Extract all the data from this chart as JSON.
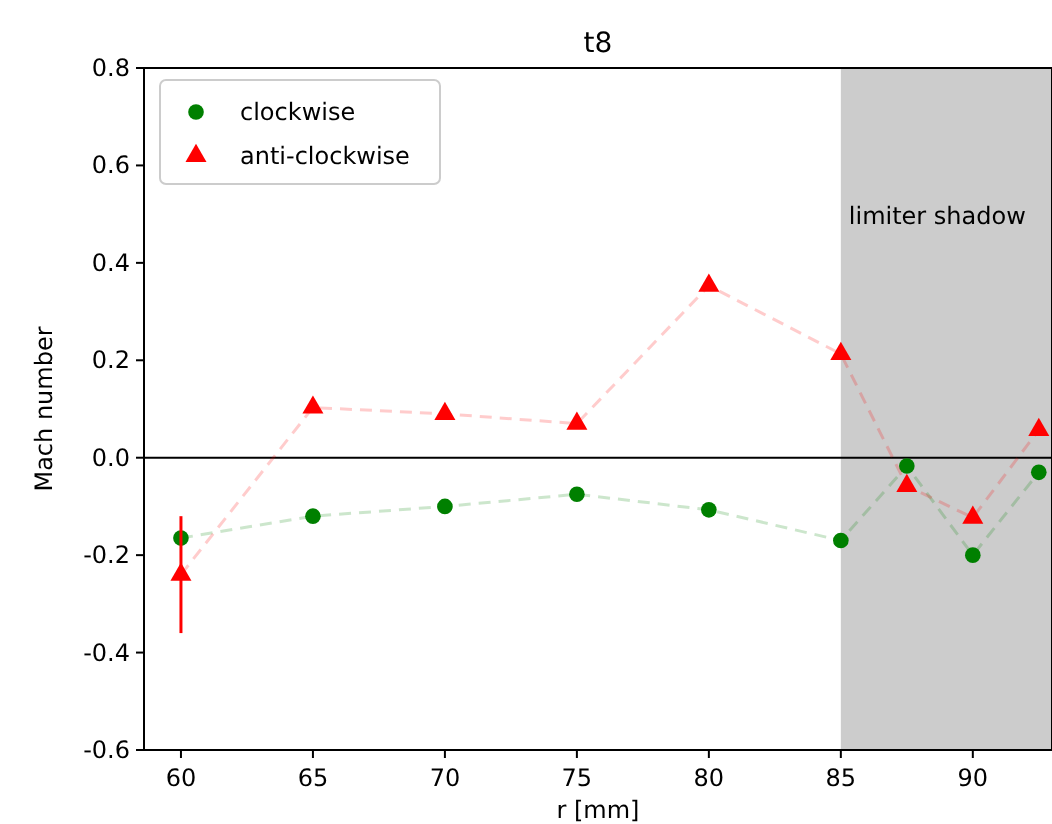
{
  "chart_data": {
    "type": "line",
    "title": "t8",
    "xlabel": "r [mm]",
    "ylabel": "Mach number",
    "x": [
      60,
      65,
      70,
      75,
      80,
      85,
      87.5,
      90,
      92.5
    ],
    "series": [
      {
        "name": "clockwise",
        "color": "#008000",
        "marker": "circle",
        "values": [
          -0.165,
          -0.12,
          -0.1,
          -0.075,
          -0.107,
          -0.17,
          -0.017,
          -0.2,
          -0.03
        ]
      },
      {
        "name": "anti-clockwise",
        "color": "#ff0000",
        "marker": "triangle",
        "values": [
          -0.24,
          0.103,
          0.09,
          0.07,
          0.353,
          0.213,
          -0.058,
          -0.123,
          0.057
        ],
        "errors": [
          0.12,
          null,
          null,
          null,
          null,
          null,
          null,
          null,
          null
        ]
      }
    ],
    "line_style": "dashed",
    "xlim": [
      58.6,
      93
    ],
    "xticks": [
      60,
      65,
      70,
      75,
      80,
      85,
      90
    ],
    "ylim": [
      -0.6,
      0.8
    ],
    "yticks": [
      -0.6,
      -0.4,
      -0.2,
      {
        "value": 0,
        "label": "0.0"
      },
      0.2,
      0.4,
      0.6,
      0.8
    ],
    "ref_lines": [
      {
        "axis": "y",
        "value": 0,
        "color": "#000000"
      }
    ],
    "bands": [
      {
        "axis": "x",
        "from": 85,
        "to": 93,
        "label": "limiter shadow",
        "color": "#cccccc"
      }
    ],
    "legend": "top left",
    "grid": false
  }
}
